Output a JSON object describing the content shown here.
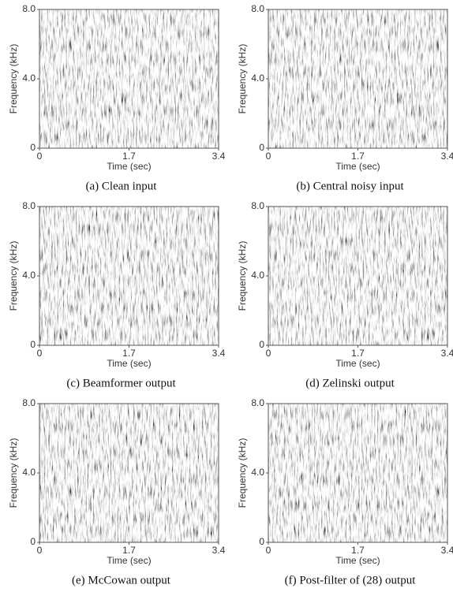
{
  "chart_data": [
    {
      "type": "spectrogram",
      "caption": "(a)  Clean input",
      "xlabel": "Time (sec)",
      "ylabel": "Frequency (kHz)",
      "xlim": [
        0,
        3.4
      ],
      "xticks": [
        0,
        1.7,
        3.4
      ],
      "ylim": [
        0,
        8
      ],
      "yticks": [
        0,
        {
          "value": 4,
          "label": "4.0"
        },
        {
          "value": 8,
          "label": "8.0"
        }
      ]
    },
    {
      "type": "spectrogram",
      "caption": "(b) Central noisy input",
      "xlabel": "Time (sec)",
      "ylabel": "Frequency (kHz)",
      "xlim": [
        0,
        3.4
      ],
      "xticks": [
        0,
        1.7,
        3.4
      ],
      "ylim": [
        0,
        8
      ],
      "yticks": [
        0,
        {
          "value": 4,
          "label": "4.0"
        },
        {
          "value": 8,
          "label": "8.0"
        }
      ]
    },
    {
      "type": "spectrogram",
      "caption": "(c) Beamformer output",
      "xlabel": "Time (sec)",
      "ylabel": "Frequency (kHz)",
      "xlim": [
        0,
        3.4
      ],
      "xticks": [
        0,
        1.7,
        3.4
      ],
      "ylim": [
        0,
        8
      ],
      "yticks": [
        0,
        {
          "value": 4,
          "label": "4.0"
        },
        {
          "value": 8,
          "label": "8.0"
        }
      ]
    },
    {
      "type": "spectrogram",
      "caption": "(d) Zelinski output",
      "xlabel": "Time (sec)",
      "ylabel": "Frequency (kHz)",
      "xlim": [
        0,
        3.4
      ],
      "xticks": [
        0,
        1.7,
        3.4
      ],
      "ylim": [
        0,
        8
      ],
      "yticks": [
        0,
        {
          "value": 4,
          "label": "4.0"
        },
        {
          "value": 8,
          "label": "8.0"
        }
      ]
    },
    {
      "type": "spectrogram",
      "caption": "(e) McCowan output",
      "xlabel": "Time (sec)",
      "ylabel": "Frequency (kHz)",
      "xlim": [
        0,
        3.4
      ],
      "xticks": [
        0,
        1.7,
        3.4
      ],
      "ylim": [
        0,
        8
      ],
      "yticks": [
        0,
        {
          "value": 4,
          "label": "4.0"
        },
        {
          "value": 8,
          "label": "8.0"
        }
      ]
    },
    {
      "type": "spectrogram",
      "caption": "(f) Post-filter of (28) output",
      "xlabel": "Time (sec)",
      "ylabel": "Frequency (kHz)",
      "xlim": [
        0,
        3.4
      ],
      "xticks": [
        0,
        1.7,
        3.4
      ],
      "ylim": [
        0,
        8
      ],
      "yticks": [
        0,
        {
          "value": 4,
          "label": "4.0"
        },
        {
          "value": 8,
          "label": "8.0"
        }
      ]
    }
  ]
}
